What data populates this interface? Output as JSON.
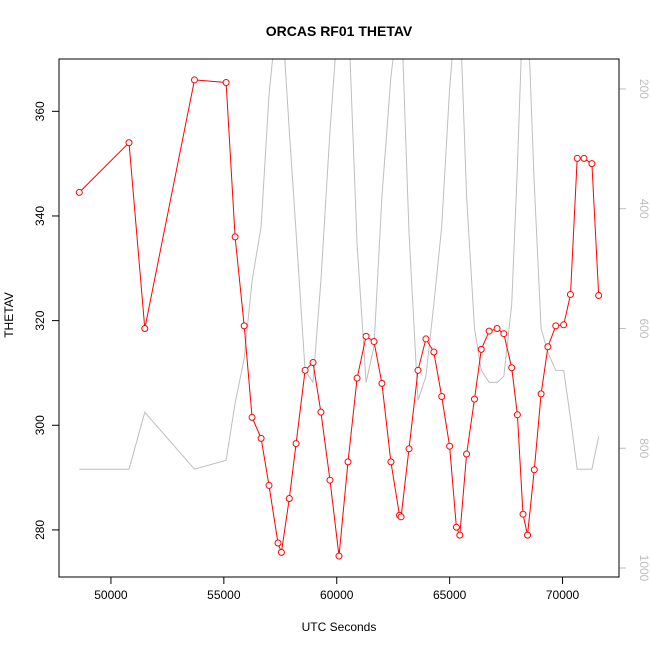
{
  "chart_data": {
    "type": "line",
    "title": "ORCAS RF01 THETAV",
    "xlabel": "UTC Seconds",
    "ylabel": "THETAV",
    "xlim": [
      47700,
      72500
    ],
    "ylim": [
      271,
      370
    ],
    "y2lim": [
      1015,
      150
    ],
    "y2_inverted": true,
    "x_ticks": [
      50000,
      55000,
      60000,
      65000,
      70000
    ],
    "y_ticks": [
      280,
      300,
      320,
      340,
      360
    ],
    "y2_ticks": [
      200,
      400,
      600,
      800,
      1000
    ],
    "grid": false,
    "series": [
      {
        "axis": "left",
        "color": "#ff0000",
        "marker": "open-circle",
        "x": [
          48600,
          50800,
          51500,
          53700,
          55100,
          55500,
          55900,
          56250,
          56650,
          57000,
          57400,
          57550,
          57900,
          58200,
          58600,
          58950,
          59300,
          59700,
          60100,
          60500,
          60900,
          61300,
          61650,
          62000,
          62400,
          62780,
          62850,
          63200,
          63600,
          63950,
          64300,
          64650,
          65000,
          65300,
          65450,
          65750,
          66100,
          66400,
          66750,
          67100,
          67400,
          67750,
          68000,
          68250,
          68450,
          68750,
          69050,
          69350,
          69700,
          70050,
          70350,
          70650,
          70950,
          71300,
          71600
        ],
        "y": [
          344.5,
          354,
          318.5,
          366,
          365.5,
          336,
          319,
          301.5,
          297.5,
          288.5,
          277.5,
          275.7,
          286,
          296.5,
          310.5,
          312,
          302.5,
          289.5,
          275,
          293,
          309,
          317,
          316,
          308,
          293,
          282.8,
          282.5,
          295.5,
          310.5,
          316.5,
          314,
          305.5,
          296,
          280.5,
          279,
          294.5,
          305,
          314.5,
          318,
          318.5,
          317.5,
          311,
          302,
          283,
          279,
          291.5,
          306,
          315,
          319,
          319.2,
          325,
          351,
          351,
          350,
          324.8
        ]
      },
      {
        "axis": "right",
        "color": "#bebebe",
        "marker": "none",
        "x": [
          48600,
          50800,
          51500,
          53700,
          55100,
          55500,
          55900,
          56250,
          56650,
          57000,
          57400,
          57550,
          57900,
          58200,
          58600,
          58950,
          59300,
          59700,
          60100,
          60500,
          60900,
          61300,
          61650,
          62000,
          62400,
          62780,
          62850,
          63200,
          63600,
          63950,
          64300,
          64650,
          65000,
          65300,
          65450,
          65750,
          66100,
          66400,
          66750,
          67100,
          67400,
          67750,
          68000,
          68250,
          68450,
          68750,
          69050,
          69350,
          69700,
          70050,
          70350,
          70650,
          70950,
          71300,
          71600
        ],
        "y": [
          835,
          835,
          740,
          835,
          820,
          725,
          650,
          520,
          430,
          210,
          60,
          60,
          270,
          440,
          670,
          690,
          520,
          270,
          60,
          60,
          460,
          690,
          630,
          380,
          180,
          60,
          60,
          440,
          720,
          680,
          560,
          430,
          200,
          60,
          60,
          380,
          600,
          670,
          690,
          690,
          680,
          560,
          330,
          60,
          60,
          360,
          600,
          640,
          670,
          670,
          750,
          835,
          835,
          835,
          780
        ]
      }
    ]
  }
}
